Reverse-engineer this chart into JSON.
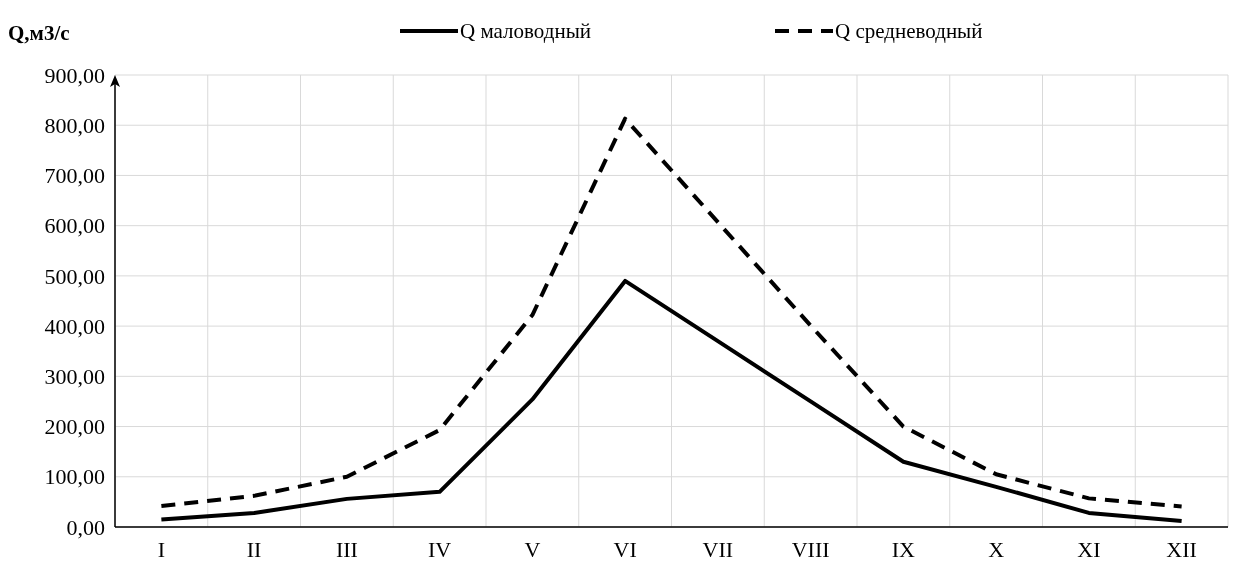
{
  "chart_data": {
    "type": "line",
    "ylabel": "Q,м3/с",
    "categories": [
      "I",
      "II",
      "III",
      "IV",
      "V",
      "VI",
      "VII",
      "VIII",
      "IX",
      "X",
      "XI",
      "XII"
    ],
    "series": [
      {
        "name": "Q маловодный",
        "color": "#000000",
        "line_style": "solid",
        "values": [
          15,
          28,
          56,
          70,
          254,
          490,
          370,
          250,
          130,
          80,
          28,
          12
        ]
      },
      {
        "name": "Q средневодный",
        "color": "#000000",
        "line_style": "dashed",
        "values": [
          42,
          62,
          100,
          193,
          422,
          813,
          607,
          401,
          200,
          105,
          57,
          41
        ]
      }
    ],
    "ylim": [
      0,
      900
    ],
    "yticks": [
      {
        "value": 0,
        "label": "0,00"
      },
      {
        "value": 100,
        "label": "100,00"
      },
      {
        "value": 200,
        "label": "200,00"
      },
      {
        "value": 300,
        "label": "300,00"
      },
      {
        "value": 400,
        "label": "400,00"
      },
      {
        "value": 500,
        "label": "500,00"
      },
      {
        "value": 600,
        "label": "600,00"
      },
      {
        "value": 700,
        "label": "700,00"
      },
      {
        "value": 800,
        "label": "800,00"
      },
      {
        "value": 900,
        "label": "900,00"
      }
    ],
    "grid": true,
    "legend": "top",
    "marker": "none"
  }
}
